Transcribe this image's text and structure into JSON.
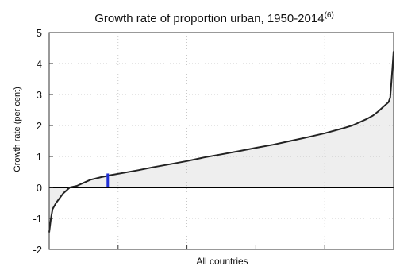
{
  "chart_data": {
    "type": "area",
    "title": "Growth rate of proportion urban, 1950-2014",
    "title_superscript": "(6)",
    "xlabel": "All countries",
    "ylabel": "Growth rate (per cent)",
    "ylim": [
      -2,
      5
    ],
    "yticks": [
      -2,
      -1,
      0,
      1,
      2,
      3,
      4,
      5
    ],
    "grid": true,
    "legend": "none",
    "x_range": [
      0,
      1
    ],
    "series": [
      {
        "x": [
          0.0,
          0.005,
          0.01,
          0.02,
          0.04,
          0.06,
          0.08,
          0.1,
          0.12,
          0.15,
          0.18,
          0.22,
          0.26,
          0.3,
          0.35,
          0.4,
          0.45,
          0.5,
          0.55,
          0.6,
          0.65,
          0.7,
          0.75,
          0.8,
          0.85,
          0.88,
          0.9,
          0.92,
          0.94,
          0.955,
          0.965,
          0.975,
          0.985,
          0.99,
          0.995,
          1.0
        ],
        "values": [
          -1.45,
          -1.0,
          -0.7,
          -0.5,
          -0.2,
          0.0,
          0.05,
          0.15,
          0.25,
          0.33,
          0.4,
          0.48,
          0.56,
          0.65,
          0.75,
          0.85,
          0.97,
          1.07,
          1.17,
          1.28,
          1.38,
          1.5,
          1.62,
          1.75,
          1.9,
          2.0,
          2.1,
          2.2,
          2.32,
          2.45,
          2.55,
          2.65,
          2.75,
          2.9,
          3.6,
          4.4
        ]
      }
    ],
    "highlight": {
      "x": 0.17,
      "ymin": 0,
      "ymax": 0.45,
      "color": "#1f2fd6"
    },
    "colors": {
      "line": "#222222",
      "fill": "#eeeeee",
      "zero_line": "#000000",
      "grid": "#bbbbbb"
    }
  }
}
